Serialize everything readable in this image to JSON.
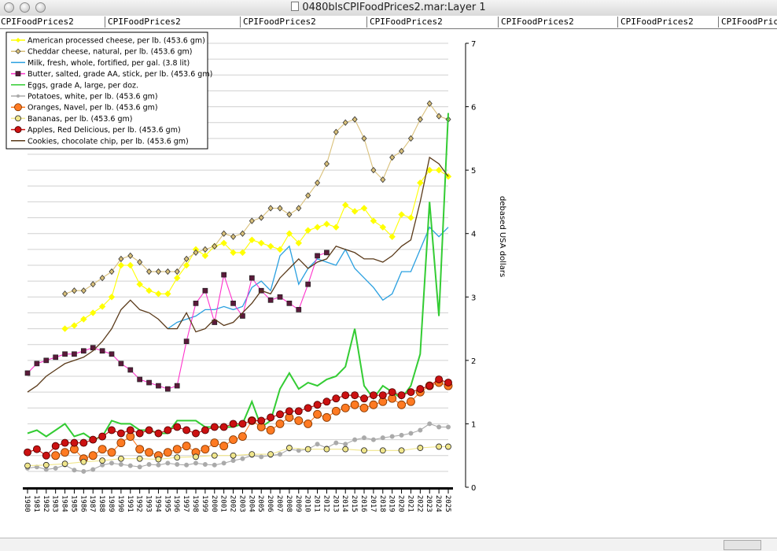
{
  "window": {
    "title": "0480blsCPIFoodPrices2.mar:Layer 1"
  },
  "tabs": [
    "CPIFoodPrices2",
    "CPIFoodPrices2",
    "CPIFoodPrices2",
    "CPIFoodPrices2",
    "CPIFoodPrices2",
    "CPIFoodPrices2",
    "CPIFoodPrices2"
  ],
  "chart_data": {
    "type": "line",
    "title": "",
    "xlabel": "",
    "ylabel": "debased USA dollars",
    "xlim": [
      1980,
      2025
    ],
    "ylim": [
      0,
      7
    ],
    "y_ticks": [
      0,
      1,
      2,
      3,
      4,
      5,
      6,
      7
    ],
    "x_ticks": [
      1980,
      1981,
      1982,
      1983,
      1984,
      1985,
      1986,
      1987,
      1988,
      1989,
      1990,
      1991,
      1992,
      1993,
      1994,
      1995,
      1996,
      1997,
      1998,
      1999,
      2000,
      2001,
      2002,
      2003,
      2004,
      2005,
      2006,
      2007,
      2008,
      2009,
      2010,
      2011,
      2012,
      2013,
      2014,
      2015,
      2016,
      2017,
      2018,
      2019,
      2020,
      2021,
      2022,
      2023,
      2024,
      2025
    ],
    "x_tick_labels": [
      "1980",
      "1981",
      "1982",
      "1983",
      "1984",
      "1985",
      "1986",
      "1987",
      "1988",
      "1989",
      "1990",
      "1991",
      "1992",
      "1993",
      "1994",
      "1995",
      "1996",
      "1997",
      "1998",
      "1999",
      "2000",
      "2001",
      "2002",
      "2003",
      "2004",
      "2005",
      "2006",
      "2007",
      "2008",
      "2009",
      "2010",
      "2011",
      "2012",
      "2013",
      "2014",
      "2015",
      "2016",
      "2017",
      "2018",
      "2019",
      "2020",
      "2021",
      "2022",
      "2023",
      "2024",
      "2025"
    ],
    "grid": true,
    "legend_position": "top-left",
    "series": [
      {
        "name": "American processed cheese, per lb. (453.6 gm)",
        "color": "#ffff00",
        "marker": "diamond",
        "x": [
          1984,
          1985,
          1986,
          1987,
          1988,
          1989,
          1990,
          1991,
          1992,
          1993,
          1994,
          1995,
          1996,
          1997,
          1998,
          1999,
          2000,
          2001,
          2002,
          2003,
          2004,
          2005,
          2006,
          2007,
          2008,
          2009,
          2010,
          2011,
          2012,
          2013,
          2014,
          2015,
          2016,
          2017,
          2018,
          2019,
          2020,
          2021,
          2022,
          2023,
          2024,
          2025
        ],
        "y": [
          2.5,
          2.55,
          2.65,
          2.75,
          2.85,
          3.0,
          3.5,
          3.5,
          3.2,
          3.1,
          3.05,
          3.05,
          3.3,
          3.5,
          3.75,
          3.65,
          3.8,
          3.85,
          3.7,
          3.7,
          3.9,
          3.85,
          3.8,
          3.75,
          4.0,
          3.85,
          4.05,
          4.1,
          4.15,
          4.1,
          4.45,
          4.35,
          4.4,
          4.2,
          4.1,
          3.95,
          4.3,
          4.25,
          4.8,
          5.0,
          5.0,
          4.9
        ]
      },
      {
        "name": "Cheddar cheese, natural, per lb. (453.6 gm)",
        "color": "#d9c07a",
        "marker": "small-diamond",
        "x": [
          1984,
          1985,
          1986,
          1987,
          1988,
          1989,
          1990,
          1991,
          1992,
          1993,
          1994,
          1995,
          1996,
          1997,
          1998,
          1999,
          2000,
          2001,
          2002,
          2003,
          2004,
          2005,
          2006,
          2007,
          2008,
          2009,
          2010,
          2011,
          2012,
          2013,
          2014,
          2015,
          2016,
          2017,
          2018,
          2019,
          2020,
          2021,
          2022,
          2023,
          2024,
          2025
        ],
        "y": [
          3.05,
          3.1,
          3.1,
          3.2,
          3.3,
          3.4,
          3.6,
          3.65,
          3.55,
          3.4,
          3.4,
          3.4,
          3.4,
          3.6,
          3.7,
          3.75,
          3.8,
          4.0,
          3.95,
          4.0,
          4.2,
          4.25,
          4.4,
          4.4,
          4.3,
          4.4,
          4.6,
          4.8,
          5.1,
          5.6,
          5.75,
          5.8,
          5.5,
          5.0,
          4.85,
          5.2,
          5.3,
          5.5,
          5.8,
          6.05,
          5.85,
          5.8
        ]
      },
      {
        "name": "Milk, fresh, whole, fortified, per gal. (3.8 lit)",
        "color": "#2aa0e0",
        "marker": "none",
        "x": [
          1995,
          1996,
          1997,
          1998,
          1999,
          2000,
          2001,
          2002,
          2003,
          2004,
          2005,
          2006,
          2007,
          2008,
          2009,
          2010,
          2011,
          2012,
          2013,
          2014,
          2015,
          2016,
          2017,
          2018,
          2019,
          2020,
          2021,
          2022,
          2023,
          2024,
          2025
        ],
        "y": [
          2.5,
          2.6,
          2.65,
          2.7,
          2.8,
          2.8,
          2.85,
          2.8,
          2.85,
          3.15,
          3.25,
          3.1,
          3.65,
          3.8,
          3.2,
          3.45,
          3.6,
          3.55,
          3.5,
          3.75,
          3.45,
          3.3,
          3.15,
          2.95,
          3.05,
          3.4,
          3.4,
          3.75,
          4.1,
          3.95,
          4.1
        ]
      },
      {
        "name": "Butter, salted, grade AA, stick, per lb. (453.6 gm)",
        "color": "#ff33cc",
        "marker": "square",
        "x": [
          1980,
          1981,
          1982,
          1983,
          1984,
          1985,
          1986,
          1987,
          1988,
          1989,
          1990,
          1991,
          1992,
          1993,
          1994,
          1995,
          1996,
          1997,
          1998,
          1999,
          2000,
          2001,
          2002,
          2003,
          2004,
          2005,
          2006,
          2007,
          2008,
          2009,
          2010,
          2011,
          2012
        ],
        "y": [
          1.8,
          1.95,
          2.0,
          2.05,
          2.1,
          2.1,
          2.15,
          2.2,
          2.15,
          2.1,
          1.95,
          1.85,
          1.7,
          1.65,
          1.6,
          1.55,
          1.6,
          2.3,
          2.9,
          3.1,
          2.6,
          3.35,
          2.9,
          2.7,
          3.3,
          3.1,
          2.95,
          3.0,
          2.9,
          2.8,
          3.2,
          3.65,
          3.7
        ]
      },
      {
        "name": "Eggs, grade A, large, per doz.",
        "color": "#33cc33",
        "marker": "none",
        "x": [
          1980,
          1981,
          1982,
          1983,
          1984,
          1985,
          1986,
          1987,
          1988,
          1989,
          1990,
          1991,
          1992,
          1993,
          1994,
          1995,
          1996,
          1997,
          1998,
          1999,
          2000,
          2001,
          2002,
          2003,
          2004,
          2005,
          2006,
          2007,
          2008,
          2009,
          2010,
          2011,
          2012,
          2013,
          2014,
          2015,
          2016,
          2017,
          2018,
          2019,
          2020,
          2021,
          2022,
          2023,
          2024,
          2025
        ],
        "y": [
          0.85,
          0.9,
          0.8,
          0.9,
          1.0,
          0.8,
          0.85,
          0.75,
          0.8,
          1.05,
          1.0,
          1.0,
          0.9,
          0.9,
          0.85,
          0.85,
          1.05,
          1.05,
          1.05,
          0.95,
          0.95,
          0.95,
          0.95,
          1.0,
          1.35,
          0.95,
          1.05,
          1.55,
          1.8,
          1.55,
          1.65,
          1.6,
          1.7,
          1.75,
          1.9,
          2.5,
          1.6,
          1.4,
          1.6,
          1.5,
          1.4,
          1.6,
          2.1,
          4.5,
          2.7,
          5.9
        ]
      },
      {
        "name": "Potatoes, white, per lb. (453.6 gm)",
        "color": "#aaaaaa",
        "marker": "small-circle",
        "x": [
          1980,
          1981,
          1982,
          1983,
          1984,
          1985,
          1986,
          1987,
          1988,
          1989,
          1990,
          1991,
          1992,
          1993,
          1994,
          1995,
          1996,
          1997,
          1998,
          1999,
          2000,
          2001,
          2002,
          2003,
          2004,
          2005,
          2006,
          2007,
          2008,
          2009,
          2010,
          2011,
          2012,
          2013,
          2014,
          2015,
          2016,
          2017,
          2018,
          2019,
          2020,
          2021,
          2022,
          2023,
          2024,
          2025
        ],
        "y": [
          0.3,
          0.32,
          0.28,
          0.3,
          0.35,
          0.27,
          0.25,
          0.28,
          0.35,
          0.38,
          0.36,
          0.34,
          0.32,
          0.36,
          0.35,
          0.38,
          0.36,
          0.35,
          0.38,
          0.36,
          0.35,
          0.38,
          0.42,
          0.45,
          0.5,
          0.48,
          0.5,
          0.52,
          0.6,
          0.58,
          0.6,
          0.68,
          0.62,
          0.7,
          0.68,
          0.75,
          0.78,
          0.75,
          0.78,
          0.8,
          0.82,
          0.85,
          0.9,
          1.0,
          0.95,
          0.95
        ]
      },
      {
        "name": "Oranges, Navel, per lb. (453.6 gm)",
        "color": "#ff7a22",
        "marker": "big-circle",
        "x": [
          1983,
          1984,
          1985,
          1986,
          1987,
          1988,
          1989,
          1990,
          1991,
          1992,
          1993,
          1994,
          1995,
          1996,
          1997,
          1998,
          1999,
          2000,
          2001,
          2002,
          2003,
          2004,
          2005,
          2006,
          2007,
          2008,
          2009,
          2010,
          2011,
          2012,
          2013,
          2014,
          2015,
          2016,
          2017,
          2018,
          2019,
          2020,
          2021,
          2022,
          2023,
          2024,
          2025
        ],
        "y": [
          0.5,
          0.55,
          0.6,
          0.45,
          0.5,
          0.6,
          0.55,
          0.7,
          0.8,
          0.6,
          0.55,
          0.5,
          0.55,
          0.6,
          0.65,
          0.55,
          0.6,
          0.7,
          0.65,
          0.75,
          0.8,
          1.05,
          0.95,
          0.9,
          1.0,
          1.1,
          1.05,
          1.0,
          1.15,
          1.1,
          1.2,
          1.25,
          1.3,
          1.25,
          1.3,
          1.35,
          1.4,
          1.3,
          1.35,
          1.5,
          1.6,
          1.65,
          1.6
        ]
      },
      {
        "name": "Bananas, per lb. (453.6 gm)",
        "color": "#f0e68c",
        "marker": "crossed-circle",
        "x": [
          1980,
          1982,
          1984,
          1986,
          1988,
          1990,
          1992,
          1994,
          1996,
          1998,
          2000,
          2002,
          2004,
          2006,
          2008,
          2010,
          2012,
          2014,
          2016,
          2018,
          2020,
          2022,
          2024,
          2025
        ],
        "y": [
          0.34,
          0.35,
          0.37,
          0.4,
          0.42,
          0.45,
          0.45,
          0.44,
          0.47,
          0.48,
          0.5,
          0.5,
          0.52,
          0.52,
          0.62,
          0.6,
          0.6,
          0.6,
          0.58,
          0.58,
          0.58,
          0.62,
          0.64,
          0.64
        ]
      },
      {
        "name": "Apples, Red Delicious, per lb. (453.6 gm)",
        "color": "#cc1111",
        "marker": "circle",
        "x": [
          1980,
          1981,
          1982,
          1983,
          1984,
          1985,
          1986,
          1987,
          1988,
          1989,
          1990,
          1991,
          1992,
          1993,
          1994,
          1995,
          1996,
          1997,
          1998,
          1999,
          2000,
          2001,
          2002,
          2003,
          2004,
          2005,
          2006,
          2007,
          2008,
          2009,
          2010,
          2011,
          2012,
          2013,
          2014,
          2015,
          2016,
          2017,
          2018,
          2019,
          2020,
          2021,
          2022,
          2023,
          2024,
          2025
        ],
        "y": [
          0.55,
          0.6,
          0.5,
          0.65,
          0.7,
          0.7,
          0.7,
          0.75,
          0.8,
          0.9,
          0.85,
          0.9,
          0.85,
          0.9,
          0.85,
          0.9,
          0.95,
          0.9,
          0.85,
          0.9,
          0.95,
          0.95,
          1.0,
          1.0,
          1.05,
          1.05,
          1.1,
          1.15,
          1.2,
          1.2,
          1.25,
          1.3,
          1.35,
          1.4,
          1.45,
          1.45,
          1.4,
          1.45,
          1.45,
          1.5,
          1.45,
          1.5,
          1.55,
          1.6,
          1.7,
          1.65
        ]
      },
      {
        "name": "Cookies, chocolate chip, per lb. (453.6 gm)",
        "color": "#5a3a1a",
        "marker": "none",
        "x": [
          1980,
          1981,
          1982,
          1983,
          1984,
          1985,
          1986,
          1987,
          1988,
          1989,
          1990,
          1991,
          1992,
          1993,
          1994,
          1995,
          1996,
          1997,
          1998,
          1999,
          2000,
          2001,
          2002,
          2003,
          2004,
          2005,
          2006,
          2007,
          2008,
          2009,
          2010,
          2011,
          2012,
          2013,
          2014,
          2015,
          2016,
          2017,
          2018,
          2019,
          2020,
          2021,
          2022,
          2023,
          2024,
          2025
        ],
        "y": [
          1.5,
          1.6,
          1.75,
          1.85,
          1.95,
          2.0,
          2.05,
          2.15,
          2.3,
          2.5,
          2.8,
          2.95,
          2.8,
          2.75,
          2.65,
          2.5,
          2.5,
          2.75,
          2.45,
          2.5,
          2.65,
          2.55,
          2.6,
          2.75,
          2.9,
          3.1,
          3.05,
          3.3,
          3.45,
          3.6,
          3.45,
          3.55,
          3.6,
          3.8,
          3.75,
          3.7,
          3.6,
          3.6,
          3.55,
          3.65,
          3.8,
          3.9,
          4.5,
          5.2,
          5.1,
          4.9
        ]
      }
    ]
  }
}
